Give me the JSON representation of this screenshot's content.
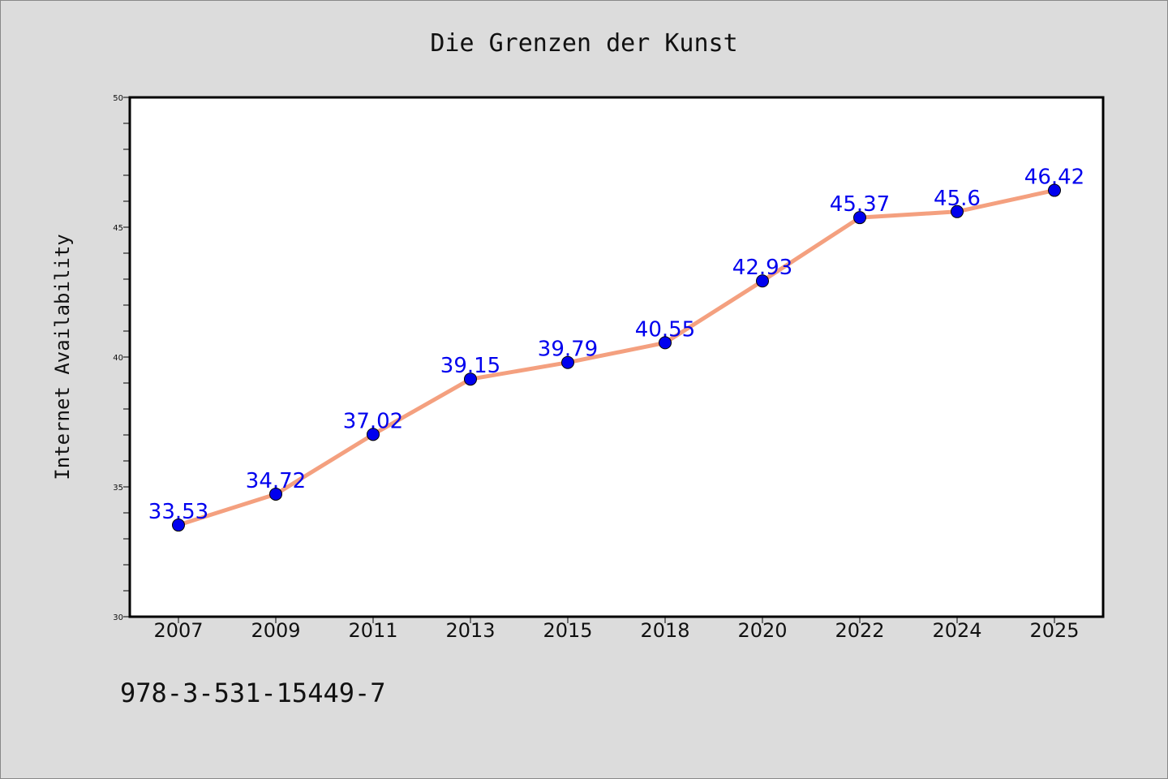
{
  "chart_data": {
    "type": "line",
    "title": "Die Grenzen der Kunst",
    "xlabel": "",
    "ylabel": "Internet Availability",
    "categories": [
      "2007",
      "2009",
      "2011",
      "2013",
      "2015",
      "2018",
      "2020",
      "2022",
      "2024",
      "2025"
    ],
    "series": [
      {
        "values": [
          33.53,
          34.72,
          37.02,
          39.15,
          39.79,
          40.55,
          42.93,
          45.37,
          45.6,
          46.42
        ],
        "labels": [
          "33.53",
          "34.72",
          "37.02",
          "39.15",
          "39.79",
          "40.55",
          "42.93",
          "45.37",
          "45.6",
          "46.42"
        ],
        "line_color": "#f4a07f",
        "marker_color": "#0000ee",
        "label_color": "#0000ee"
      }
    ],
    "ylim": [
      30,
      50
    ],
    "yticks": [
      "30",
      "35",
      "40",
      "45",
      "50"
    ],
    "grid": false,
    "legend": "none"
  },
  "footer": {
    "isbn": "978-3-531-15449-7"
  }
}
